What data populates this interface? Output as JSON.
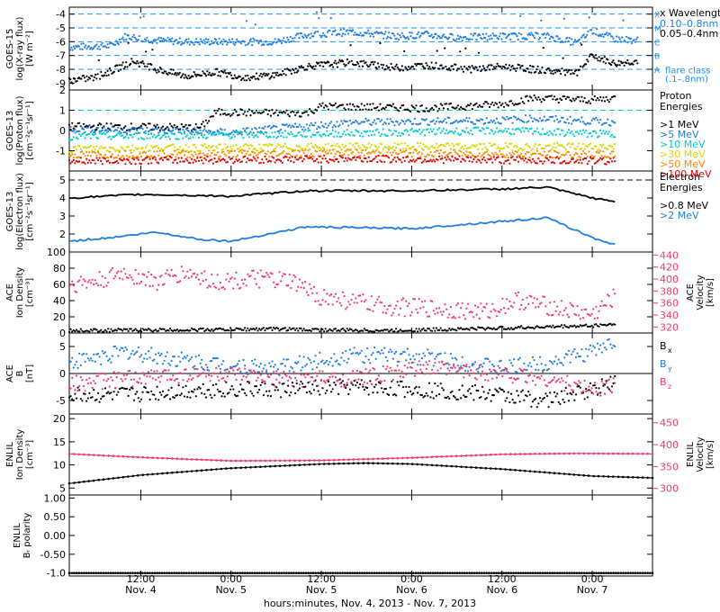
{
  "colors": {
    "black": "#000000",
    "blue": "#1e7ee0",
    "cyan": "#00cccc",
    "green": "#00c000",
    "yellow": "#d8d800",
    "orange": "#ff8c00",
    "red": "#e00000",
    "pink": "#ee3a6a",
    "dash": "#1e90ff"
  },
  "x_axis": {
    "ticks": [
      {
        "time": "12:00",
        "date": "Nov. 4",
        "t": 12
      },
      {
        "time": "0:00",
        "date": "Nov. 5",
        "t": 24
      },
      {
        "time": "12:00",
        "date": "Nov. 5",
        "t": 36
      },
      {
        "time": "0:00",
        "date": "Nov. 6",
        "t": 48
      },
      {
        "time": "12:00",
        "date": "Nov. 6",
        "t": 60
      },
      {
        "time": "0:00",
        "date": "Nov. 7",
        "t": 72
      }
    ],
    "title": "hours:minutes, Nov.  4, 2013 - Nov.  7, 2013",
    "range_hours": [
      2.5,
      80
    ]
  },
  "chart_data": [
    {
      "type": "line",
      "panel": "goes15-xray",
      "ylabel": [
        "GOES-15",
        "log(X-ray flux)",
        "[W m⁻²]"
      ],
      "ylim": [
        -9.5,
        -3.5
      ],
      "yticks": [
        -9,
        -8,
        -7,
        -6,
        -5,
        -4
      ],
      "legend": {
        "title": "Wavelength",
        "items": [
          {
            "name": "0.10–0.8nm",
            "color": "blue"
          },
          {
            "name": "0.05–0.4nm",
            "color": "black"
          }
        ]
      },
      "flare_classes": [
        {
          "label": "X",
          "value": -4
        },
        {
          "label": "M",
          "value": -5
        },
        {
          "label": "C",
          "value": -6
        },
        {
          "label": "B",
          "value": -7
        },
        {
          "label": "A",
          "value": -8
        }
      ],
      "flare_note": [
        "flare class",
        "(.1–.8nm)"
      ],
      "series": [
        {
          "name": "0.10–0.8nm",
          "color": "blue",
          "points": [
            [
              2.5,
              -6.4
            ],
            [
              8,
              -6.3
            ],
            [
              10,
              -5.6
            ],
            [
              14,
              -5.9
            ],
            [
              18,
              -6.0
            ],
            [
              24,
              -6.0
            ],
            [
              30,
              -6.0
            ],
            [
              34,
              -5.5
            ],
            [
              40,
              -5.3
            ],
            [
              46,
              -5.6
            ],
            [
              50,
              -5.5
            ],
            [
              54,
              -5.7
            ],
            [
              60,
              -5.6
            ],
            [
              66,
              -5.6
            ],
            [
              70,
              -6.1
            ],
            [
              72,
              -5.2
            ],
            [
              75,
              -5.8
            ],
            [
              78,
              -5.9
            ]
          ]
        },
        {
          "name": "0.05–0.4nm",
          "color": "black",
          "points": [
            [
              2.5,
              -8.8
            ],
            [
              6,
              -8.6
            ],
            [
              9,
              -7.9
            ],
            [
              11,
              -7.4
            ],
            [
              14,
              -8.0
            ],
            [
              18,
              -8.5
            ],
            [
              22,
              -8.2
            ],
            [
              26,
              -8.6
            ],
            [
              30,
              -8.4
            ],
            [
              34,
              -7.8
            ],
            [
              40,
              -7.5
            ],
            [
              46,
              -7.9
            ],
            [
              50,
              -7.7
            ],
            [
              56,
              -8.0
            ],
            [
              60,
              -7.8
            ],
            [
              66,
              -8.1
            ],
            [
              70,
              -8.3
            ],
            [
              72,
              -7.0
            ],
            [
              75,
              -7.6
            ],
            [
              78,
              -7.4
            ]
          ]
        }
      ]
    },
    {
      "type": "line",
      "panel": "goes13-proton",
      "ylabel": [
        "GOES-13",
        "log(Proton flux)",
        "[cm⁻²s⁻¹sr⁻¹]"
      ],
      "ylim": [
        -2,
        2
      ],
      "yticks": [
        -1,
        0,
        1,
        2
      ],
      "legend": {
        "title": [
          "Proton",
          "Energies"
        ],
        "items": [
          {
            "name": ">1 MeV",
            "color": "black"
          },
          {
            "name": ">5 MeV",
            "color": "blue"
          },
          {
            "name": ">10 MeV",
            "color": "cyan"
          },
          {
            "name": ">30 MeV",
            "color": "yellow"
          },
          {
            "name": ">50 MeV",
            "color": "orange"
          },
          {
            "name": ">100 MeV",
            "color": "red"
          }
        ]
      },
      "threshold": 1,
      "series": [
        {
          "name": ">1 MeV",
          "color": "black",
          "points": [
            [
              2.5,
              0.2
            ],
            [
              20,
              0.15
            ],
            [
              22,
              0.9
            ],
            [
              34,
              0.85
            ],
            [
              36,
              1.2
            ],
            [
              50,
              1.1
            ],
            [
              60,
              1.3
            ],
            [
              64,
              1.6
            ],
            [
              72,
              1.5
            ],
            [
              75,
              1.6
            ]
          ]
        },
        {
          "name": ">5 MeV",
          "color": "blue",
          "points": [
            [
              2.5,
              0.1
            ],
            [
              24,
              -0.1
            ],
            [
              40,
              0.4
            ],
            [
              60,
              0.5
            ],
            [
              64,
              0.6
            ],
            [
              75,
              0.4
            ]
          ]
        },
        {
          "name": ">10 MeV",
          "color": "cyan",
          "points": [
            [
              2.5,
              -0.3
            ],
            [
              30,
              -0.2
            ],
            [
              60,
              0.0
            ],
            [
              75,
              -0.2
            ]
          ]
        },
        {
          "name": ">30 MeV",
          "color": "yellow",
          "points": [
            [
              2.5,
              -0.9
            ],
            [
              40,
              -0.8
            ],
            [
              75,
              -0.8
            ]
          ]
        },
        {
          "name": ">50 MeV",
          "color": "orange",
          "points": [
            [
              2.5,
              -1.2
            ],
            [
              40,
              -1.1
            ],
            [
              75,
              -1.2
            ]
          ]
        },
        {
          "name": ">100 MeV",
          "color": "red",
          "points": [
            [
              2.5,
              -1.5
            ],
            [
              40,
              -1.4
            ],
            [
              75,
              -1.5
            ]
          ]
        }
      ]
    },
    {
      "type": "line",
      "panel": "goes13-electron",
      "ylabel": [
        "GOES-13",
        "log(Electron flux)",
        "[cm⁻²s⁻¹sr⁻¹]"
      ],
      "ylim": [
        1,
        5.5
      ],
      "yticks": [
        2,
        3,
        4,
        5
      ],
      "legend": {
        "title": [
          "Electron",
          "Energies"
        ],
        "items": [
          {
            "name": ">0.8 MeV",
            "color": "black"
          },
          {
            "name": ">2 MeV",
            "color": "blue"
          }
        ]
      },
      "threshold": 5,
      "series": [
        {
          "name": ">0.8 MeV",
          "color": "black",
          "points": [
            [
              2.5,
              4.0
            ],
            [
              12,
              4.2
            ],
            [
              24,
              4.1
            ],
            [
              34,
              4.4
            ],
            [
              48,
              4.4
            ],
            [
              60,
              4.5
            ],
            [
              66,
              4.6
            ],
            [
              72,
              4.0
            ],
            [
              75,
              3.8
            ]
          ]
        },
        {
          "name": ">2 MeV",
          "color": "blue",
          "points": [
            [
              2.5,
              1.6
            ],
            [
              8,
              1.8
            ],
            [
              14,
              2.1
            ],
            [
              20,
              1.7
            ],
            [
              24,
              1.6
            ],
            [
              34,
              2.4
            ],
            [
              48,
              2.3
            ],
            [
              60,
              2.7
            ],
            [
              66,
              2.9
            ],
            [
              72,
              1.8
            ],
            [
              75,
              1.4
            ]
          ]
        }
      ]
    },
    {
      "type": "scatter",
      "panel": "ace-density-velocity",
      "ylabel": [
        "ACE",
        "Ion Density",
        "[cm⁻³]"
      ],
      "y2label": [
        "ACE",
        "Velocity",
        "[km/s]"
      ],
      "ylim": [
        0,
        100
      ],
      "yticks": [
        0,
        20,
        40,
        60,
        80,
        100
      ],
      "y2lim": [
        310,
        445
      ],
      "y2ticks": [
        320,
        340,
        360,
        380,
        400,
        420,
        440
      ],
      "series": [
        {
          "name": "Ion Density",
          "color": "black",
          "points": [
            [
              2.5,
              3
            ],
            [
              20,
              4
            ],
            [
              30,
              5
            ],
            [
              34,
              4
            ],
            [
              45,
              3
            ],
            [
              60,
              6
            ],
            [
              72,
              9
            ],
            [
              75,
              11
            ]
          ]
        },
        {
          "name": "Velocity",
          "color": "pink",
          "points": [
            [
              2.5,
              390
            ],
            [
              6,
              395
            ],
            [
              10,
              410
            ],
            [
              14,
              395
            ],
            [
              18,
              410
            ],
            [
              22,
              395
            ],
            [
              28,
              400
            ],
            [
              32,
              395
            ],
            [
              36,
              370
            ],
            [
              44,
              355
            ],
            [
              52,
              350
            ],
            [
              58,
              345
            ],
            [
              62,
              365
            ],
            [
              66,
              355
            ],
            [
              72,
              340
            ],
            [
              75,
              370
            ]
          ]
        }
      ]
    },
    {
      "type": "scatter",
      "panel": "ace-b",
      "ylabel": [
        "ACE",
        "B",
        "[nT]"
      ],
      "ylim": [
        -7.5,
        7.5
      ],
      "yticks": [
        -5,
        0,
        5
      ],
      "legend": {
        "items": [
          {
            "name": "B",
            "sub": "x",
            "color": "black"
          },
          {
            "name": "B",
            "sub": "y",
            "color": "blue"
          },
          {
            "name": "B",
            "sub": "z",
            "color": "pink"
          }
        ]
      },
      "series": [
        {
          "name": "Bx",
          "color": "black",
          "points": [
            [
              2.5,
              -4
            ],
            [
              10,
              -4
            ],
            [
              20,
              -3
            ],
            [
              30,
              -3
            ],
            [
              40,
              -2.5
            ],
            [
              50,
              -3
            ],
            [
              60,
              -4
            ],
            [
              66,
              -5
            ],
            [
              72,
              -3
            ],
            [
              75,
              -1
            ]
          ]
        },
        {
          "name": "By",
          "color": "blue",
          "points": [
            [
              2.5,
              2
            ],
            [
              10,
              4
            ],
            [
              20,
              2
            ],
            [
              30,
              1
            ],
            [
              40,
              3.5
            ],
            [
              50,
              3
            ],
            [
              60,
              1
            ],
            [
              66,
              2
            ],
            [
              72,
              4
            ],
            [
              75,
              6
            ]
          ]
        },
        {
          "name": "Bz",
          "color": "pink",
          "points": [
            [
              2.5,
              -2
            ],
            [
              10,
              -1
            ],
            [
              20,
              0
            ],
            [
              30,
              -1
            ],
            [
              40,
              -1
            ],
            [
              50,
              1
            ],
            [
              60,
              0
            ],
            [
              66,
              -1
            ],
            [
              72,
              -3
            ],
            [
              75,
              -2
            ]
          ]
        }
      ]
    },
    {
      "type": "line",
      "panel": "enlil-density-velocity",
      "ylabel": [
        "ENLIL",
        "Ion Density",
        "[cm⁻³]"
      ],
      "y2label": [
        "ENLIL",
        "Velocity",
        "[km/s]"
      ],
      "ylim": [
        3.5,
        21
      ],
      "yticks": [
        5,
        10,
        15,
        20
      ],
      "y2lim": [
        285,
        470
      ],
      "y2ticks": [
        300,
        350,
        400,
        450
      ],
      "series": [
        {
          "name": "Ion Density",
          "color": "black",
          "points": [
            [
              2.5,
              6.0
            ],
            [
              12,
              7.8
            ],
            [
              24,
              9.3
            ],
            [
              36,
              10.2
            ],
            [
              42,
              10.4
            ],
            [
              48,
              10.2
            ],
            [
              60,
              9.1
            ],
            [
              72,
              7.6
            ],
            [
              80,
              7.2
            ]
          ]
        },
        {
          "name": "Velocity",
          "color": "pink",
          "points": [
            [
              2.5,
              379
            ],
            [
              12,
              371
            ],
            [
              24,
              363
            ],
            [
              36,
              364
            ],
            [
              48,
              370
            ],
            [
              60,
              378
            ],
            [
              70,
              380
            ],
            [
              80,
              379
            ]
          ]
        }
      ]
    },
    {
      "type": "line",
      "panel": "enlil-polarity",
      "ylabel": [
        "ENLIL",
        "Bᵣ polarity"
      ],
      "ylim": [
        -1.08,
        1.08
      ],
      "yticks": [
        -1.0,
        -0.5,
        0.0,
        0.5,
        1.0
      ],
      "ytick_labels": [
        "-1.0",
        "-0.50",
        "0.00",
        "0.50",
        "1.00"
      ],
      "series": [
        {
          "name": "Br polarity",
          "color": "black",
          "points": [
            [
              2.5,
              -1
            ],
            [
              80,
              -1
            ]
          ]
        }
      ]
    }
  ]
}
